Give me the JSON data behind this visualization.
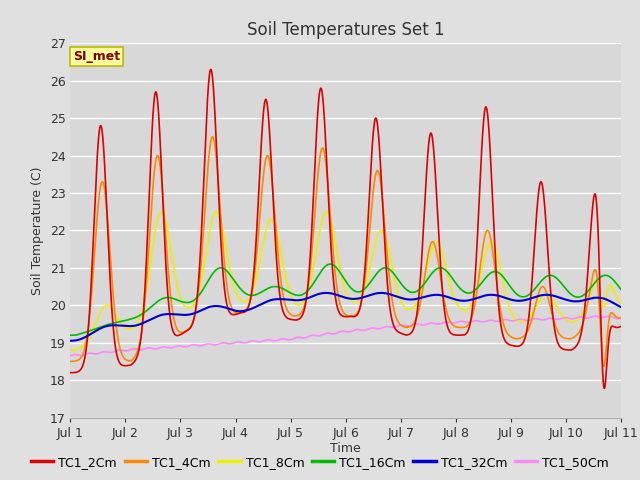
{
  "title": "Soil Temperatures Set 1",
  "ylabel": "Soil Temperature (C)",
  "xlabel": "Time",
  "annotation": "SI_met",
  "ylim": [
    17.0,
    27.0
  ],
  "yticks": [
    17.0,
    18.0,
    19.0,
    20.0,
    21.0,
    22.0,
    23.0,
    24.0,
    25.0,
    26.0,
    27.0
  ],
  "x_tick_labels": [
    "Jul 1",
    "Jul 2",
    "Jul 3",
    "Jul 4",
    "Jul 5",
    "Jul 6",
    "Jul 7",
    "Jul 8",
    "Jul 9",
    "Jul 10",
    "Jul 11"
  ],
  "series_colors": [
    "#dd0000",
    "#ff8800",
    "#eeee00",
    "#00bb00",
    "#0000cc",
    "#ff88ff"
  ],
  "series_labels": [
    "TC1_2Cm",
    "TC1_4Cm",
    "TC1_8Cm",
    "TC1_16Cm",
    "TC1_32Cm",
    "TC1_50Cm"
  ],
  "background_color": "#e0e0e0",
  "plot_bg_color": "#d8d8d8",
  "grid_color": "#ffffff",
  "n_days": 10,
  "pts_per_day": 288
}
